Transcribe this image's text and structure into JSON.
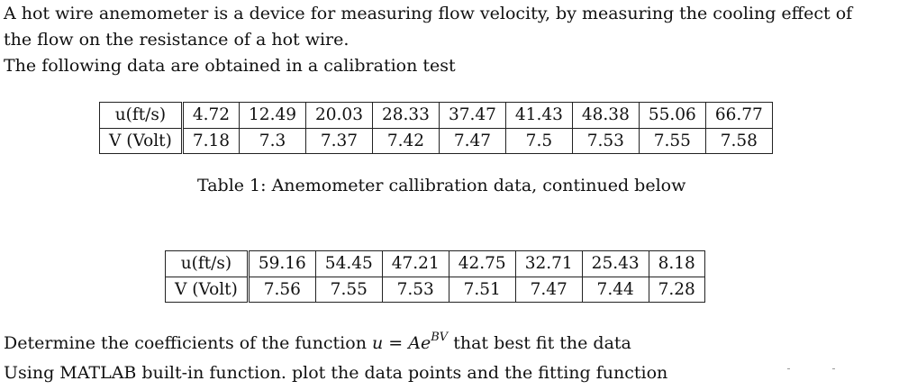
{
  "intro": {
    "line1": "A hot wire anemometer is a device for measuring flow velocity, by measuring the cooling effect of",
    "line2": "the flow on the resistance of a hot wire.",
    "line3": "The following data are obtained in a calibration test"
  },
  "table1": {
    "row_labels": [
      "u(ft/s)",
      "V (Volt)"
    ],
    "u": [
      "4.72",
      "12.49",
      "20.03",
      "28.33",
      "37.47",
      "41.43",
      "48.38",
      "55.06",
      "66.77"
    ],
    "v": [
      "7.18",
      "7.3",
      "7.37",
      "7.42",
      "7.47",
      "7.5",
      "7.53",
      "7.55",
      "7.58"
    ],
    "caption": "Table 1: Anemometer callibration data, continued below"
  },
  "table2": {
    "row_labels": [
      "u(ft/s)",
      "V (Volt)"
    ],
    "u": [
      "59.16",
      "54.45",
      "47.21",
      "42.75",
      "32.71",
      "25.43",
      "8.18"
    ],
    "v": [
      "7.56",
      "7.55",
      "7.53",
      "7.51",
      "7.47",
      "7.44",
      "7.28"
    ]
  },
  "task": {
    "line1_prefix": "Determine the coefficients of the function ",
    "formula_lhs": "u",
    "formula_eq": " = ",
    "formula_base": "Ae",
    "formula_exp": "BV",
    "line1_suffix": " that best fit the data",
    "line2": "Using MATLAB built-in function. plot the data points and the fitting function"
  }
}
